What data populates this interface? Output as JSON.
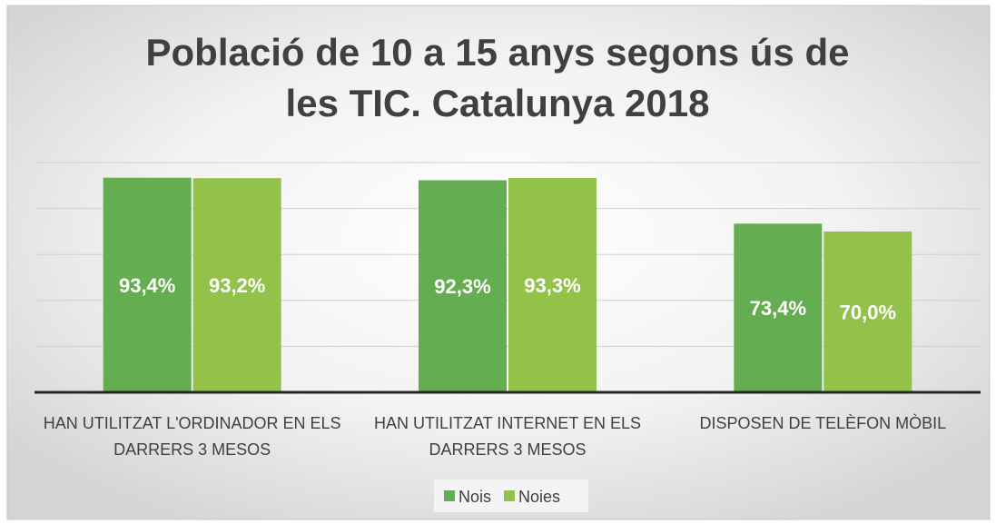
{
  "chart_data": {
    "type": "bar",
    "title": "Població de 10 a 15 anys segons ús de les TIC. Catalunya 2018",
    "categories": [
      "HAN UTILITZAT L'ORDINADOR EN ELS DARRERS 3 MESOS",
      "HAN UTILITZAT INTERNET EN ELS DARRERS 3 MESOS",
      "DISPOSEN DE TELÈFON MÒBIL"
    ],
    "series": [
      {
        "name": "Nois",
        "color": "#65ad51",
        "values": [
          93.4,
          92.3,
          73.4
        ],
        "value_labels": [
          "93,4%",
          "92,3%",
          "73,4%"
        ]
      },
      {
        "name": "Noies",
        "color": "#93c24a",
        "values": [
          93.2,
          93.3,
          70.0
        ],
        "value_labels": [
          "93,2%",
          "93,3%",
          "70,0%"
        ]
      }
    ],
    "ylim": [
      0,
      100
    ],
    "yticks": [
      0,
      20,
      40,
      60,
      80,
      100
    ],
    "grid": true,
    "legend": "bottom"
  }
}
